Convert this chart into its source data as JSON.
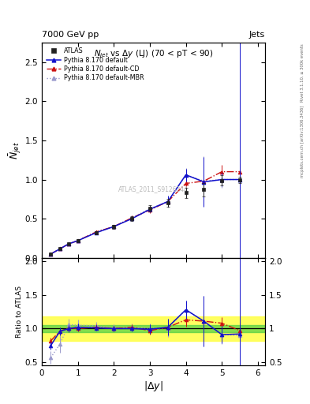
{
  "title_top": "7000 GeV pp",
  "title_right": "Jets",
  "plot_title": "$N_{jet}$ vs $\\Delta y$ (LJ) (70 < pT < 90)",
  "xlabel": "$|\\Delta y|$",
  "ylabel_main": "$\\bar{N}_{jet}$",
  "ylabel_ratio": "Ratio to ATLAS",
  "watermark": "ATLAS_2011_S9126244",
  "rivet_label": "Rivet 3.1.10, ≥ 300k events",
  "mcplots_label": "mcplots.cern.ch [arXiv:1306.3436]",
  "atlas_x": [
    0.25,
    0.5,
    0.75,
    1.0,
    1.5,
    2.0,
    2.5,
    3.0,
    3.5,
    4.0,
    4.5,
    5.0,
    5.5
  ],
  "atlas_y": [
    0.05,
    0.12,
    0.18,
    0.22,
    0.32,
    0.4,
    0.5,
    0.63,
    0.7,
    0.83,
    0.87,
    0.99,
    1.0
  ],
  "atlas_yerr": [
    0.005,
    0.01,
    0.012,
    0.015,
    0.02,
    0.025,
    0.03,
    0.04,
    0.05,
    0.065,
    0.09,
    0.07,
    0.04
  ],
  "py_default_x": [
    0.25,
    0.5,
    0.75,
    1.0,
    1.5,
    2.0,
    2.5,
    3.0,
    3.5,
    4.0,
    4.5,
    5.0,
    5.5
  ],
  "py_default_y": [
    0.05,
    0.115,
    0.18,
    0.22,
    0.32,
    0.4,
    0.5,
    0.62,
    0.72,
    1.06,
    0.97,
    1.0,
    1.0
  ],
  "py_default_yerr": [
    0.003,
    0.008,
    0.012,
    0.015,
    0.018,
    0.022,
    0.028,
    0.038,
    0.07,
    0.08,
    0.32,
    0.09,
    1.9
  ],
  "py_cd_x": [
    0.25,
    0.5,
    0.75,
    1.0,
    1.5,
    2.0,
    2.5,
    3.0,
    3.5,
    4.0,
    4.5,
    5.0,
    5.5
  ],
  "py_cd_y": [
    0.05,
    0.115,
    0.18,
    0.22,
    0.33,
    0.4,
    0.51,
    0.61,
    0.72,
    0.95,
    0.98,
    1.1,
    1.1
  ],
  "py_cd_yerr": [
    0.003,
    0.008,
    0.012,
    0.015,
    0.018,
    0.022,
    0.028,
    0.038,
    0.05,
    0.08,
    0.09,
    0.09,
    0.11
  ],
  "py_mbr_x": [
    0.25,
    0.5,
    0.75,
    1.0,
    1.5,
    2.0,
    2.5,
    3.0,
    3.5,
    4.0,
    4.5,
    5.0,
    5.5
  ],
  "py_mbr_y": [
    0.05,
    0.115,
    0.18,
    0.22,
    0.33,
    0.4,
    0.51,
    0.63,
    0.71,
    1.06,
    0.98,
    1.0,
    1.0
  ],
  "py_mbr_yerr": [
    0.003,
    0.008,
    0.012,
    0.015,
    0.018,
    0.022,
    0.028,
    0.038,
    0.07,
    0.09,
    0.32,
    0.11,
    1.9
  ],
  "ratio_default_y": [
    0.75,
    0.96,
    1.0,
    1.02,
    1.01,
    1.0,
    1.0,
    0.99,
    1.02,
    1.28,
    1.11,
    0.91,
    0.92
  ],
  "ratio_default_yerr": [
    0.06,
    0.06,
    0.05,
    0.05,
    0.04,
    0.04,
    0.04,
    0.07,
    0.12,
    0.13,
    0.38,
    0.13,
    1.9
  ],
  "ratio_cd_y": [
    0.82,
    0.96,
    1.01,
    1.0,
    1.02,
    1.0,
    1.02,
    0.97,
    1.02,
    1.13,
    1.11,
    1.08,
    0.97
  ],
  "ratio_cd_yerr": [
    0.05,
    0.05,
    0.04,
    0.04,
    0.04,
    0.04,
    0.04,
    0.06,
    0.06,
    0.1,
    0.11,
    0.09,
    0.11
  ],
  "ratio_mbr_y": [
    0.57,
    0.77,
    1.06,
    1.05,
    1.04,
    1.01,
    1.02,
    1.0,
    1.01,
    1.28,
    1.11,
    0.91,
    0.9
  ],
  "ratio_mbr_yerr": [
    0.09,
    0.13,
    0.08,
    0.08,
    0.06,
    0.05,
    0.05,
    0.08,
    0.13,
    0.13,
    0.38,
    0.14,
    1.9
  ],
  "green_band": [
    0.95,
    1.05
  ],
  "yellow_band": [
    0.82,
    1.18
  ],
  "color_atlas": "#222222",
  "color_default": "#1111cc",
  "color_cd": "#cc1111",
  "color_mbr": "#9999cc",
  "ylim_main": [
    0.0,
    2.75
  ],
  "ylim_ratio": [
    0.45,
    2.05
  ],
  "xlim": [
    0.0,
    6.2
  ],
  "yticks_main": [
    0.0,
    0.5,
    1.0,
    1.5,
    2.0,
    2.5
  ],
  "yticks_ratio": [
    0.5,
    1.0,
    1.5,
    2.0
  ]
}
